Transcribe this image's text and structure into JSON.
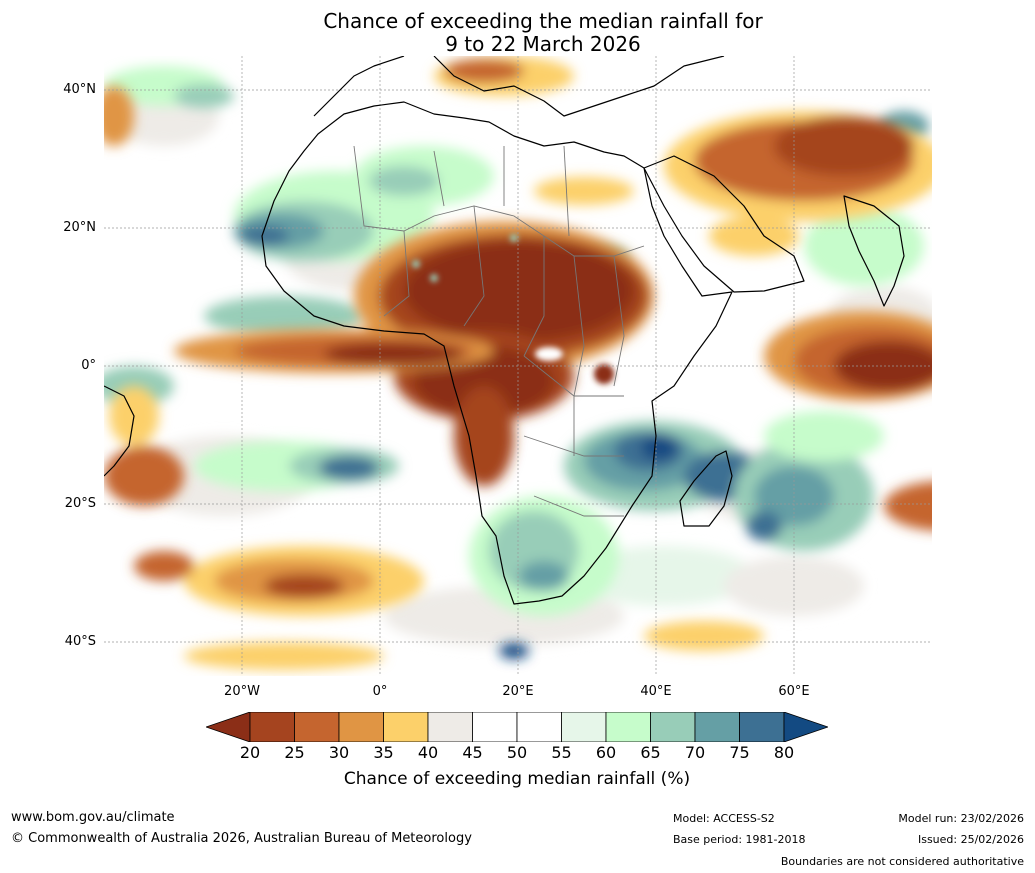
{
  "title": {
    "line1": "Chance of exceeding the median rainfall for",
    "line2": "9 to 22 March 2026"
  },
  "map": {
    "region": "Africa",
    "y_ticks": [
      {
        "lat": 40,
        "label": "40°N"
      },
      {
        "lat": 20,
        "label": "20°N"
      },
      {
        "lat": 0,
        "label": "0°"
      },
      {
        "lat": -20,
        "label": "20°S"
      },
      {
        "lat": -40,
        "label": "40°S"
      }
    ],
    "x_ticks": [
      {
        "lon": -20,
        "label": "20°W"
      },
      {
        "lon": 0,
        "label": "0°"
      },
      {
        "lon": 20,
        "label": "20°E"
      },
      {
        "lon": 40,
        "label": "40°E"
      },
      {
        "lon": 60,
        "label": "60°E"
      }
    ],
    "lon_range": [
      -40,
      80
    ],
    "lat_range": [
      -45,
      45
    ],
    "anomaly_regions": [
      {
        "region": "Sahel and Central Africa",
        "category": "20-25%"
      },
      {
        "region": "Equatorial Atlantic",
        "category": "25-30%"
      },
      {
        "region": "Arabian Peninsula and Iran",
        "category": "25-35%"
      },
      {
        "region": "Equatorial Indian Ocean",
        "category": "20-30%"
      },
      {
        "region": "Southern Atlantic",
        "category": "25-35%"
      },
      {
        "region": "Tropical North Atlantic",
        "category": "70-80%"
      },
      {
        "region": "Mozambique and Tanzania",
        "category": "75-80%"
      },
      {
        "region": "Southern Africa",
        "category": "60-70%"
      },
      {
        "region": "Southwest Indian Ocean",
        "category": "65-75%"
      }
    ]
  },
  "colorbar": {
    "title": "Chance of exceeding median rainfall (%)",
    "labels": [
      "20",
      "25",
      "30",
      "35",
      "40",
      "45",
      "50",
      "55",
      "60",
      "65",
      "70",
      "75",
      "80"
    ],
    "colors": [
      "#8b2e17",
      "#a5441f",
      "#c5652f",
      "#e09544",
      "#fcd06a",
      "#eeebe7",
      "#ffffff",
      "#ffffff",
      "#e6f6e9",
      "#c6fccb",
      "#98cdb8",
      "#659fa5",
      "#3d7093",
      "#134a82"
    ]
  },
  "footer": {
    "website": "www.bom.gov.au/climate",
    "copyright": "© Commonwealth of Australia 2026, Australian Bureau of Meteorology",
    "model": "Model: ACCESS-S2",
    "base_period": "Base period: 1981-2018",
    "model_run": "Model run: 23/02/2026",
    "issued": "Issued: 25/02/2026",
    "disclaimer": "Boundaries are not considered authoritative"
  }
}
